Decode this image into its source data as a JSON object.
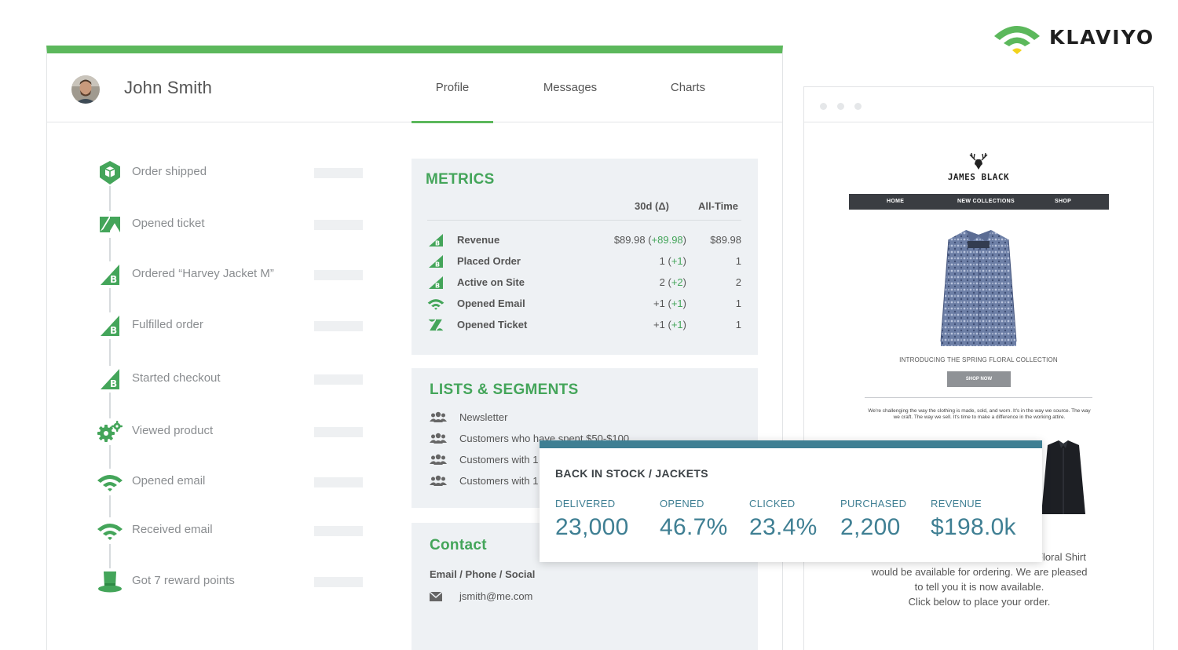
{
  "brand": {
    "name": "KLAVIYO"
  },
  "colors": {
    "green": "#5cb85c",
    "green_dark": "#44a55a",
    "teal": "#3f7f93",
    "card_bg": "#eef1f4"
  },
  "profile": {
    "name": "John Smith",
    "tabs": [
      "Profile",
      "Messages",
      "Charts"
    ],
    "active_tab": "Profile"
  },
  "timeline": [
    {
      "label": "Order shipped",
      "icon": "shopify-bag-icon"
    },
    {
      "label": "Opened ticket",
      "icon": "zendesk-icon"
    },
    {
      "label": "Ordered “Harvey Jacket M”",
      "icon": "bigcommerce-icon"
    },
    {
      "label": "Fulfilled order",
      "icon": "bigcommerce-icon"
    },
    {
      "label": "Started checkout",
      "icon": "bigcommerce-icon"
    },
    {
      "label": "Viewed product",
      "icon": "gears-icon"
    },
    {
      "label": "Opened email",
      "icon": "klaviyo-wifi-icon"
    },
    {
      "label": "Received email",
      "icon": "klaviyo-wifi-icon"
    },
    {
      "label": "Got 7 reward points",
      "icon": "top-hat-icon"
    }
  ],
  "metrics": {
    "title": "METRICS",
    "col_30d": "30d (Δ)",
    "col_all": "All-Time",
    "rows": [
      {
        "icon": "bigcommerce-icon",
        "name": "Revenue",
        "value_30d": "$89.98",
        "delta": "+89.98",
        "all_time": "$89.98"
      },
      {
        "icon": "bigcommerce-icon",
        "name": "Placed Order",
        "value_30d": "1",
        "delta": "+1",
        "all_time": "1"
      },
      {
        "icon": "bigcommerce-icon",
        "name": "Active on Site",
        "value_30d": "2",
        "delta": "+2",
        "all_time": "2"
      },
      {
        "icon": "klaviyo-wifi-icon",
        "name": "Opened Email",
        "value_30d": "+1",
        "delta": "+1",
        "all_time": "1"
      },
      {
        "icon": "zendesk-icon",
        "name": "Opened Ticket",
        "value_30d": "+1",
        "delta": "+1",
        "all_time": "1"
      }
    ]
  },
  "lists": {
    "title": "LISTS & SEGMENTS",
    "items": [
      "Newsletter",
      "Customers who have spent $50-$100",
      "Customers with 1",
      "Customers with 1"
    ]
  },
  "contact": {
    "title": "Contact",
    "subtitle": "Email / Phone / Social",
    "email": "jsmith@me.com"
  },
  "email_preview": {
    "brand": "JAMES BLACK",
    "nav": [
      "HOME",
      "NEW COLLECTIONS",
      "SHOP"
    ],
    "intro": "INTRODUCING THE SPRING FLORAL COLLECTION",
    "button": "SHOP NOW",
    "body": "We're challenging the way the clothing is made, sold, and worn. It's in the way we source. The way we craft. The way we sell. It's time to make a difference in the working attire.",
    "notice_line1": "Floral Shirt",
    "notice_line2": "would be available for ordering. We are pleased",
    "notice_line3": "to tell you it is now available.",
    "notice_line4": "Click below to place your order."
  },
  "campaign": {
    "title": "BACK IN STOCK / JACKETS",
    "stats": [
      {
        "label": "DELIVERED",
        "value": "23,000"
      },
      {
        "label": "OPENED",
        "value": "46.7%"
      },
      {
        "label": "CLICKED",
        "value": "23.4%"
      },
      {
        "label": "PURCHASED",
        "value": "2,200"
      },
      {
        "label": "REVENUE",
        "value": "$198.0k"
      }
    ]
  }
}
